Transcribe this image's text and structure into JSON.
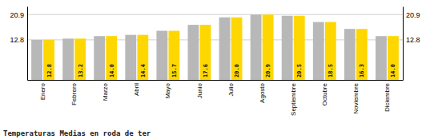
{
  "chart_data": {
    "type": "bar",
    "title": "Temperaturas Medias en roda de ter",
    "categories": [
      "Enero",
      "Febrero",
      "Marzo",
      "Abril",
      "Mayo",
      "Junio",
      "Julio",
      "Agosto",
      "Septiembre",
      "Octubre",
      "Noviembre",
      "Diciembre"
    ],
    "series": [
      {
        "color": "#B8B8B8",
        "values": [
          12.8,
          13.2,
          14.0,
          14.4,
          15.7,
          17.6,
          20.0,
          20.9,
          20.5,
          18.5,
          16.3,
          14.0
        ]
      },
      {
        "color": "#FFD700",
        "values": [
          12.8,
          13.2,
          14.0,
          14.4,
          15.7,
          17.6,
          20.0,
          20.9,
          20.5,
          18.5,
          16.3,
          14.0
        ],
        "value_labels": [
          "12.8",
          "13.2",
          "14.0",
          "14.4",
          "15.7",
          "17.6",
          "20.0",
          "20.9",
          "20.5",
          "18.5",
          "16.3",
          "14.0"
        ],
        "data_labels": true
      }
    ],
    "ylim": [
      0.0,
      23.5
    ],
    "yticks": [
      12.8,
      20.9
    ],
    "y2lim": [
      0.0,
      23.5
    ],
    "y2ticks": [
      12.8,
      20.9
    ],
    "grid": true
  }
}
